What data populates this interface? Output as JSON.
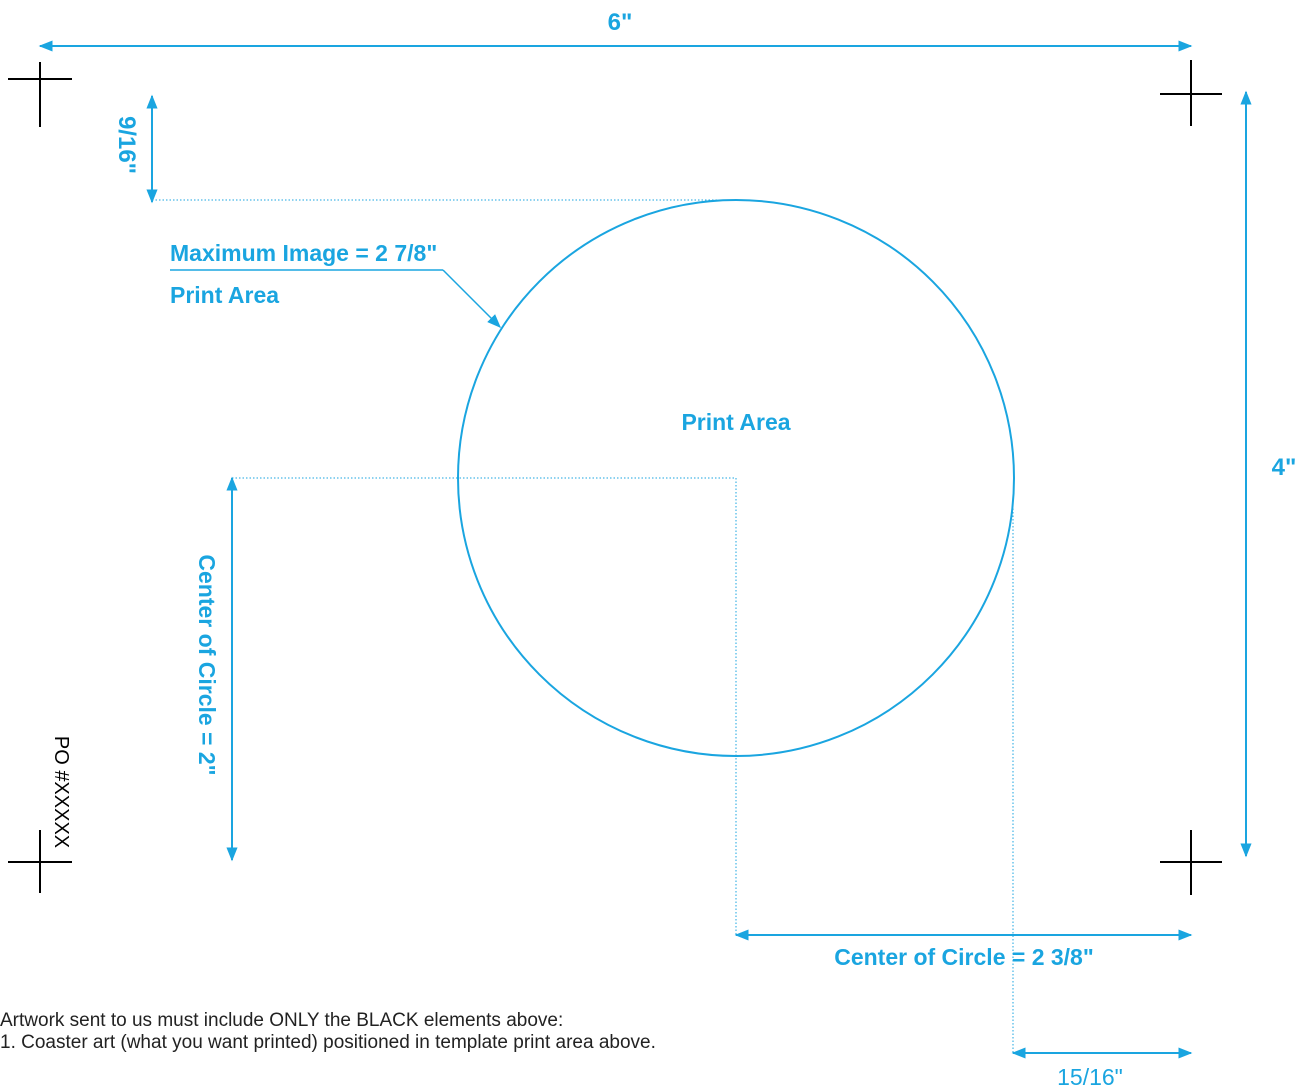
{
  "dimensions": {
    "width": "6\"",
    "height": "4\"",
    "top_offset": "9/16\"",
    "max_image_line1": "Maximum Image = 2 7/8\"",
    "max_image_line2": "Print Area",
    "print_area": "Print Area",
    "center_vertical": "Center of Circle = 2\"",
    "center_horizontal": "Center of Circle = 2 3/8\"",
    "right_offset": "15/16\""
  },
  "po_number": "PO #XXXXX",
  "instructions": {
    "intro": "Artwork sent to us must include ONLY the BLACK elements above:",
    "items": [
      "1.  Coaster art (what you want printed) positioned in template print area above."
    ]
  },
  "colors": {
    "dimension": "#1aa5e0",
    "crop_marks": "#000000"
  }
}
